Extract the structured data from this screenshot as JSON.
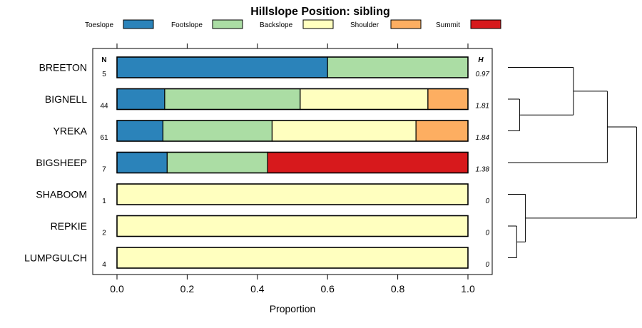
{
  "chart_data": {
    "type": "bar",
    "orientation": "horizontal-stacked",
    "title": "Hillslope Position: sibling",
    "xlabel": "Proportion",
    "xlim": [
      0,
      1
    ],
    "x_ticks": [
      0,
      0.2,
      0.4,
      0.6,
      0.8,
      1
    ],
    "x_tick_labels": [
      "0.0",
      "0.2",
      "0.4",
      "0.6",
      "0.8",
      "1.0"
    ],
    "n_header": "N",
    "h_header": "H",
    "legend": [
      {
        "name": "Toeslope",
        "color": "#2b83ba"
      },
      {
        "name": "Footslope",
        "color": "#abdda4"
      },
      {
        "name": "Backslope",
        "color": "#ffffbf"
      },
      {
        "name": "Shoulder",
        "color": "#fdae61"
      },
      {
        "name": "Summit",
        "color": "#d7191c"
      }
    ],
    "categories": [
      "BREETON",
      "BIGNELL",
      "YREKA",
      "BIGSHEEP",
      "SHABOOM",
      "REPKIE",
      "LUMPGULCH"
    ],
    "rows": [
      {
        "name": "BREETON",
        "n": "5",
        "h": "0.97",
        "values": [
          0.6,
          0.4,
          0,
          0,
          0
        ]
      },
      {
        "name": "BIGNELL",
        "n": "44",
        "h": "1.81",
        "values": [
          0.136,
          0.386,
          0.364,
          0.114,
          0
        ]
      },
      {
        "name": "YREKA",
        "n": "61",
        "h": "1.84",
        "values": [
          0.131,
          0.311,
          0.41,
          0.148,
          0
        ]
      },
      {
        "name": "BIGSHEEP",
        "n": "7",
        "h": "1.38",
        "values": [
          0.143,
          0.286,
          0,
          0,
          0.571
        ]
      },
      {
        "name": "SHABOOM",
        "n": "1",
        "h": "0",
        "values": [
          0,
          0,
          1.0,
          0,
          0
        ]
      },
      {
        "name": "REPKIE",
        "n": "2",
        "h": "0",
        "values": [
          0,
          0,
          1.0,
          0,
          0
        ]
      },
      {
        "name": "LUMPGULCH",
        "n": "4",
        "h": "0",
        "values": [
          0,
          0,
          1.0,
          0,
          0
        ]
      }
    ],
    "segment_order": [
      "Toeslope",
      "Footslope",
      "Shoulder",
      "Summit",
      "Backslope"
    ],
    "bignell_order": [
      "Toeslope",
      "Footslope",
      "Backslope",
      "Shoulder",
      "Summit"
    ],
    "dendrogram": {
      "merges": [
        {
          "left": "SHABOOM",
          "right": "REPKIE_LUMPGULCH",
          "height": 0.3
        },
        {
          "left": "REPKIE",
          "right": "LUMPGULCH",
          "height": 0.15
        },
        {
          "left": "BIGNELL",
          "right": "YREKA",
          "height": 0.2
        },
        {
          "left": "BREETON",
          "right": "BIGNELL_YREKA",
          "height": 1.0
        },
        {
          "left": "BREETON_BIGNELL_YREKA",
          "right": "BIGSHEEP",
          "height": 1.6
        },
        {
          "left": "ALL_TOP",
          "right": "BOTTOM",
          "height": 2.2
        }
      ]
    }
  }
}
